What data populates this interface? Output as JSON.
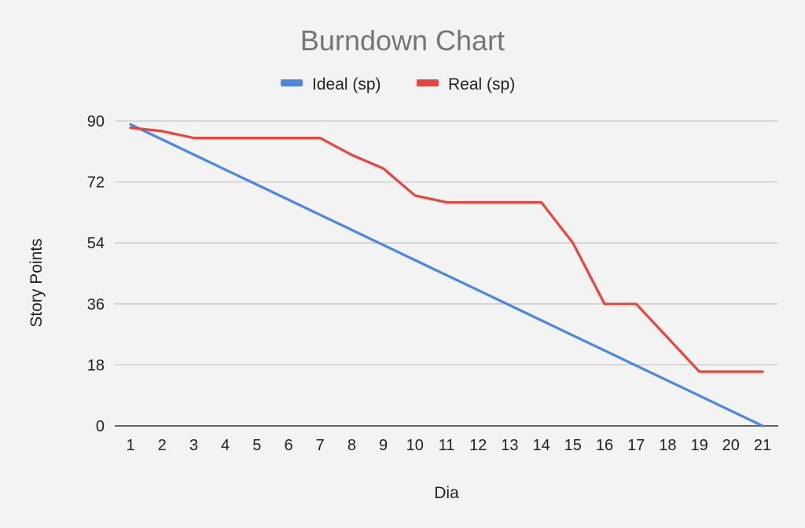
{
  "chart_data": {
    "type": "line",
    "title": "Burndown Chart",
    "xlabel": "Dia",
    "ylabel": "Story Points",
    "x": [
      1,
      2,
      3,
      4,
      5,
      6,
      7,
      8,
      9,
      10,
      11,
      12,
      13,
      14,
      15,
      16,
      17,
      18,
      19,
      20,
      21
    ],
    "x_tick_labels": [
      "1",
      "2",
      "3",
      "4",
      "5",
      "6",
      "7",
      "8",
      "9",
      "10",
      "11",
      "12",
      "13",
      "14",
      "15",
      "16",
      "17",
      "18",
      "19",
      "20",
      "21"
    ],
    "y_ticks": [
      0,
      18,
      36,
      54,
      72,
      90
    ],
    "y_tick_labels": [
      "0",
      "18",
      "36",
      "54",
      "72",
      "90"
    ],
    "ylim": [
      0,
      90
    ],
    "grid": true,
    "legend_position": "top",
    "series": [
      {
        "name": "Ideal (sp)",
        "color": "#4a86e8",
        "values": [
          89,
          84.55,
          80.1,
          75.65,
          71.2,
          66.75,
          62.3,
          57.85,
          53.4,
          48.95,
          44.5,
          40.05,
          35.6,
          31.15,
          26.7,
          22.25,
          17.8,
          13.35,
          8.9,
          4.45,
          0
        ]
      },
      {
        "name": "Real (sp)",
        "color": "#e8453c",
        "values": [
          88,
          87,
          85,
          85,
          85,
          85,
          85,
          80,
          76,
          68,
          66,
          66,
          66,
          66,
          54,
          36,
          36,
          26,
          16,
          16,
          16
        ]
      }
    ]
  }
}
